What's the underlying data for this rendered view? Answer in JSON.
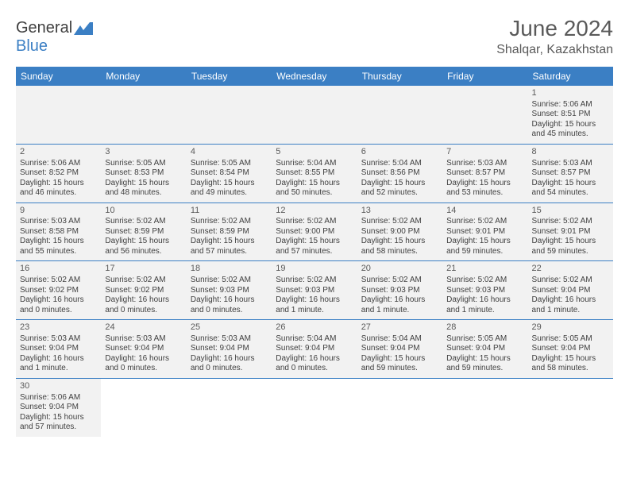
{
  "brand": {
    "text1": "General",
    "text2": "Blue"
  },
  "title": "June 2024",
  "location": "Shalqar, Kazakhstan",
  "colors": {
    "header_bg": "#3b7fc4",
    "header_text": "#ffffff",
    "row_bg": "#f2f2f2",
    "text": "#404040",
    "title_text": "#5a5a5a"
  },
  "dayHeaders": [
    "Sunday",
    "Monday",
    "Tuesday",
    "Wednesday",
    "Thursday",
    "Friday",
    "Saturday"
  ],
  "weeks": [
    [
      null,
      null,
      null,
      null,
      null,
      null,
      {
        "d": "1",
        "sr": "5:06 AM",
        "ss": "8:51 PM",
        "dl": "15 hours and 45 minutes."
      }
    ],
    [
      {
        "d": "2",
        "sr": "5:06 AM",
        "ss": "8:52 PM",
        "dl": "15 hours and 46 minutes."
      },
      {
        "d": "3",
        "sr": "5:05 AM",
        "ss": "8:53 PM",
        "dl": "15 hours and 48 minutes."
      },
      {
        "d": "4",
        "sr": "5:05 AM",
        "ss": "8:54 PM",
        "dl": "15 hours and 49 minutes."
      },
      {
        "d": "5",
        "sr": "5:04 AM",
        "ss": "8:55 PM",
        "dl": "15 hours and 50 minutes."
      },
      {
        "d": "6",
        "sr": "5:04 AM",
        "ss": "8:56 PM",
        "dl": "15 hours and 52 minutes."
      },
      {
        "d": "7",
        "sr": "5:03 AM",
        "ss": "8:57 PM",
        "dl": "15 hours and 53 minutes."
      },
      {
        "d": "8",
        "sr": "5:03 AM",
        "ss": "8:57 PM",
        "dl": "15 hours and 54 minutes."
      }
    ],
    [
      {
        "d": "9",
        "sr": "5:03 AM",
        "ss": "8:58 PM",
        "dl": "15 hours and 55 minutes."
      },
      {
        "d": "10",
        "sr": "5:02 AM",
        "ss": "8:59 PM",
        "dl": "15 hours and 56 minutes."
      },
      {
        "d": "11",
        "sr": "5:02 AM",
        "ss": "8:59 PM",
        "dl": "15 hours and 57 minutes."
      },
      {
        "d": "12",
        "sr": "5:02 AM",
        "ss": "9:00 PM",
        "dl": "15 hours and 57 minutes."
      },
      {
        "d": "13",
        "sr": "5:02 AM",
        "ss": "9:00 PM",
        "dl": "15 hours and 58 minutes."
      },
      {
        "d": "14",
        "sr": "5:02 AM",
        "ss": "9:01 PM",
        "dl": "15 hours and 59 minutes."
      },
      {
        "d": "15",
        "sr": "5:02 AM",
        "ss": "9:01 PM",
        "dl": "15 hours and 59 minutes."
      }
    ],
    [
      {
        "d": "16",
        "sr": "5:02 AM",
        "ss": "9:02 PM",
        "dl": "16 hours and 0 minutes."
      },
      {
        "d": "17",
        "sr": "5:02 AM",
        "ss": "9:02 PM",
        "dl": "16 hours and 0 minutes."
      },
      {
        "d": "18",
        "sr": "5:02 AM",
        "ss": "9:03 PM",
        "dl": "16 hours and 0 minutes."
      },
      {
        "d": "19",
        "sr": "5:02 AM",
        "ss": "9:03 PM",
        "dl": "16 hours and 1 minute."
      },
      {
        "d": "20",
        "sr": "5:02 AM",
        "ss": "9:03 PM",
        "dl": "16 hours and 1 minute."
      },
      {
        "d": "21",
        "sr": "5:02 AM",
        "ss": "9:03 PM",
        "dl": "16 hours and 1 minute."
      },
      {
        "d": "22",
        "sr": "5:02 AM",
        "ss": "9:04 PM",
        "dl": "16 hours and 1 minute."
      }
    ],
    [
      {
        "d": "23",
        "sr": "5:03 AM",
        "ss": "9:04 PM",
        "dl": "16 hours and 1 minute."
      },
      {
        "d": "24",
        "sr": "5:03 AM",
        "ss": "9:04 PM",
        "dl": "16 hours and 0 minutes."
      },
      {
        "d": "25",
        "sr": "5:03 AM",
        "ss": "9:04 PM",
        "dl": "16 hours and 0 minutes."
      },
      {
        "d": "26",
        "sr": "5:04 AM",
        "ss": "9:04 PM",
        "dl": "16 hours and 0 minutes."
      },
      {
        "d": "27",
        "sr": "5:04 AM",
        "ss": "9:04 PM",
        "dl": "15 hours and 59 minutes."
      },
      {
        "d": "28",
        "sr": "5:05 AM",
        "ss": "9:04 PM",
        "dl": "15 hours and 59 minutes."
      },
      {
        "d": "29",
        "sr": "5:05 AM",
        "ss": "9:04 PM",
        "dl": "15 hours and 58 minutes."
      }
    ],
    [
      {
        "d": "30",
        "sr": "5:06 AM",
        "ss": "9:04 PM",
        "dl": "15 hours and 57 minutes."
      },
      null,
      null,
      null,
      null,
      null,
      null
    ]
  ],
  "labels": {
    "sunrise": "Sunrise:",
    "sunset": "Sunset:",
    "daylight": "Daylight:"
  }
}
